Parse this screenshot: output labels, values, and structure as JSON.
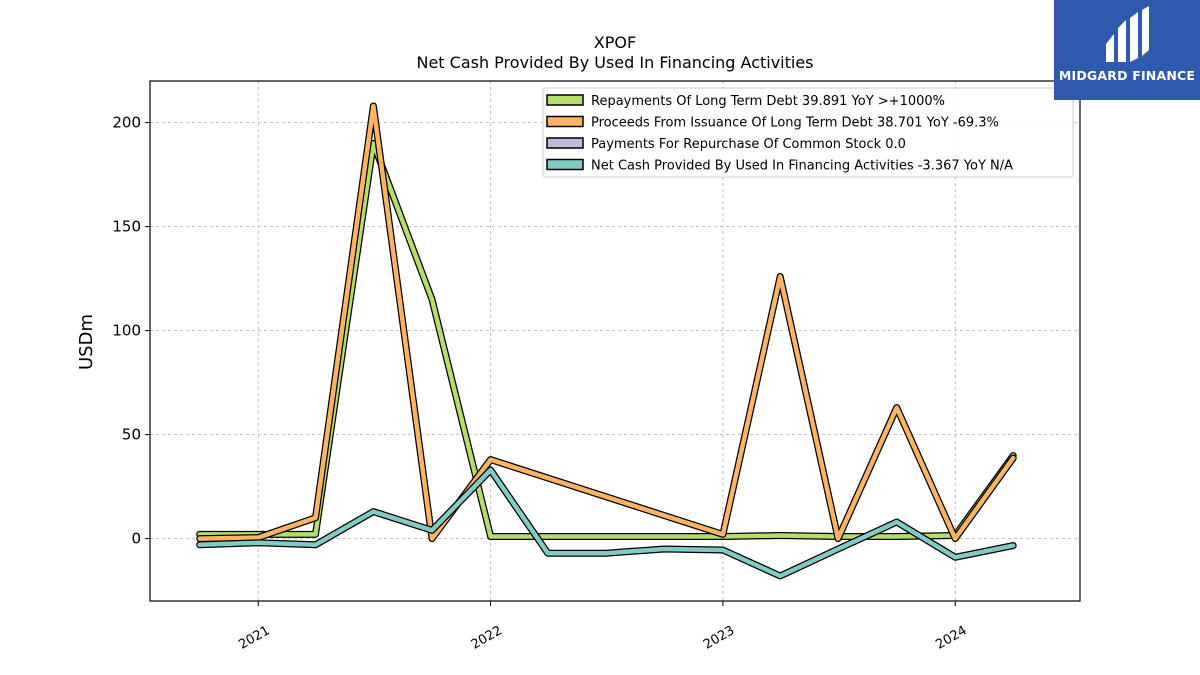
{
  "chart_data": {
    "type": "line",
    "title": "XPOF",
    "subtitle": "Net Cash Provided By Used In Financing Activities",
    "xlabel": "",
    "ylabel": "USDm",
    "x": [
      "2020-10-01",
      "2021-01-01",
      "2021-04-01",
      "2021-07-01",
      "2021-10-01",
      "2022-01-01",
      "2022-04-01",
      "2022-07-01",
      "2022-10-01",
      "2023-01-01",
      "2023-04-01",
      "2023-07-01",
      "2023-10-01",
      "2024-01-01",
      "2024-04-01"
    ],
    "x_ticks": [
      "2021",
      "2022",
      "2023",
      "2024"
    ],
    "y_ticks": [
      "0",
      "50",
      "100",
      "150",
      "200"
    ],
    "xlim": [
      "2020-07-15",
      "2024-07-15"
    ],
    "ylim": [
      -30,
      220
    ],
    "grid": true,
    "legend_position": "top-right",
    "series": [
      {
        "name": "Repayments Of Long Term Debt  39.891 YoY >+1000%",
        "color": "#b3de69",
        "values": [
          2,
          2,
          2,
          190,
          115,
          1,
          1,
          1,
          1,
          1,
          1.5,
          1,
          1,
          1.5,
          39.891
        ]
      },
      {
        "name": "Proceeds From Issuance Of Long Term Debt  38.701 YoY -69.3%",
        "color": "#fdb462",
        "values": [
          0,
          0.5,
          10,
          208,
          0,
          38,
          null,
          null,
          null,
          2,
          126,
          0,
          63,
          0,
          38.701
        ]
      },
      {
        "name": "Payments For Repurchase Of Common Stock  0.0",
        "color": "#bebada",
        "values": [
          null,
          null,
          null,
          null,
          null,
          null,
          null,
          null,
          null,
          null,
          null,
          null,
          null,
          null,
          0.0
        ]
      },
      {
        "name": "Net Cash Provided By Used In Financing Activities  -3.367 YoY N/A",
        "color": "#80cbc4",
        "values": [
          -3,
          -2,
          -3,
          13,
          4,
          33,
          -7,
          -7,
          -5,
          -5.5,
          -18,
          -5,
          8,
          -9,
          -3.367
        ]
      }
    ]
  },
  "logo": {
    "text": "MIDGARD FINANCE"
  }
}
